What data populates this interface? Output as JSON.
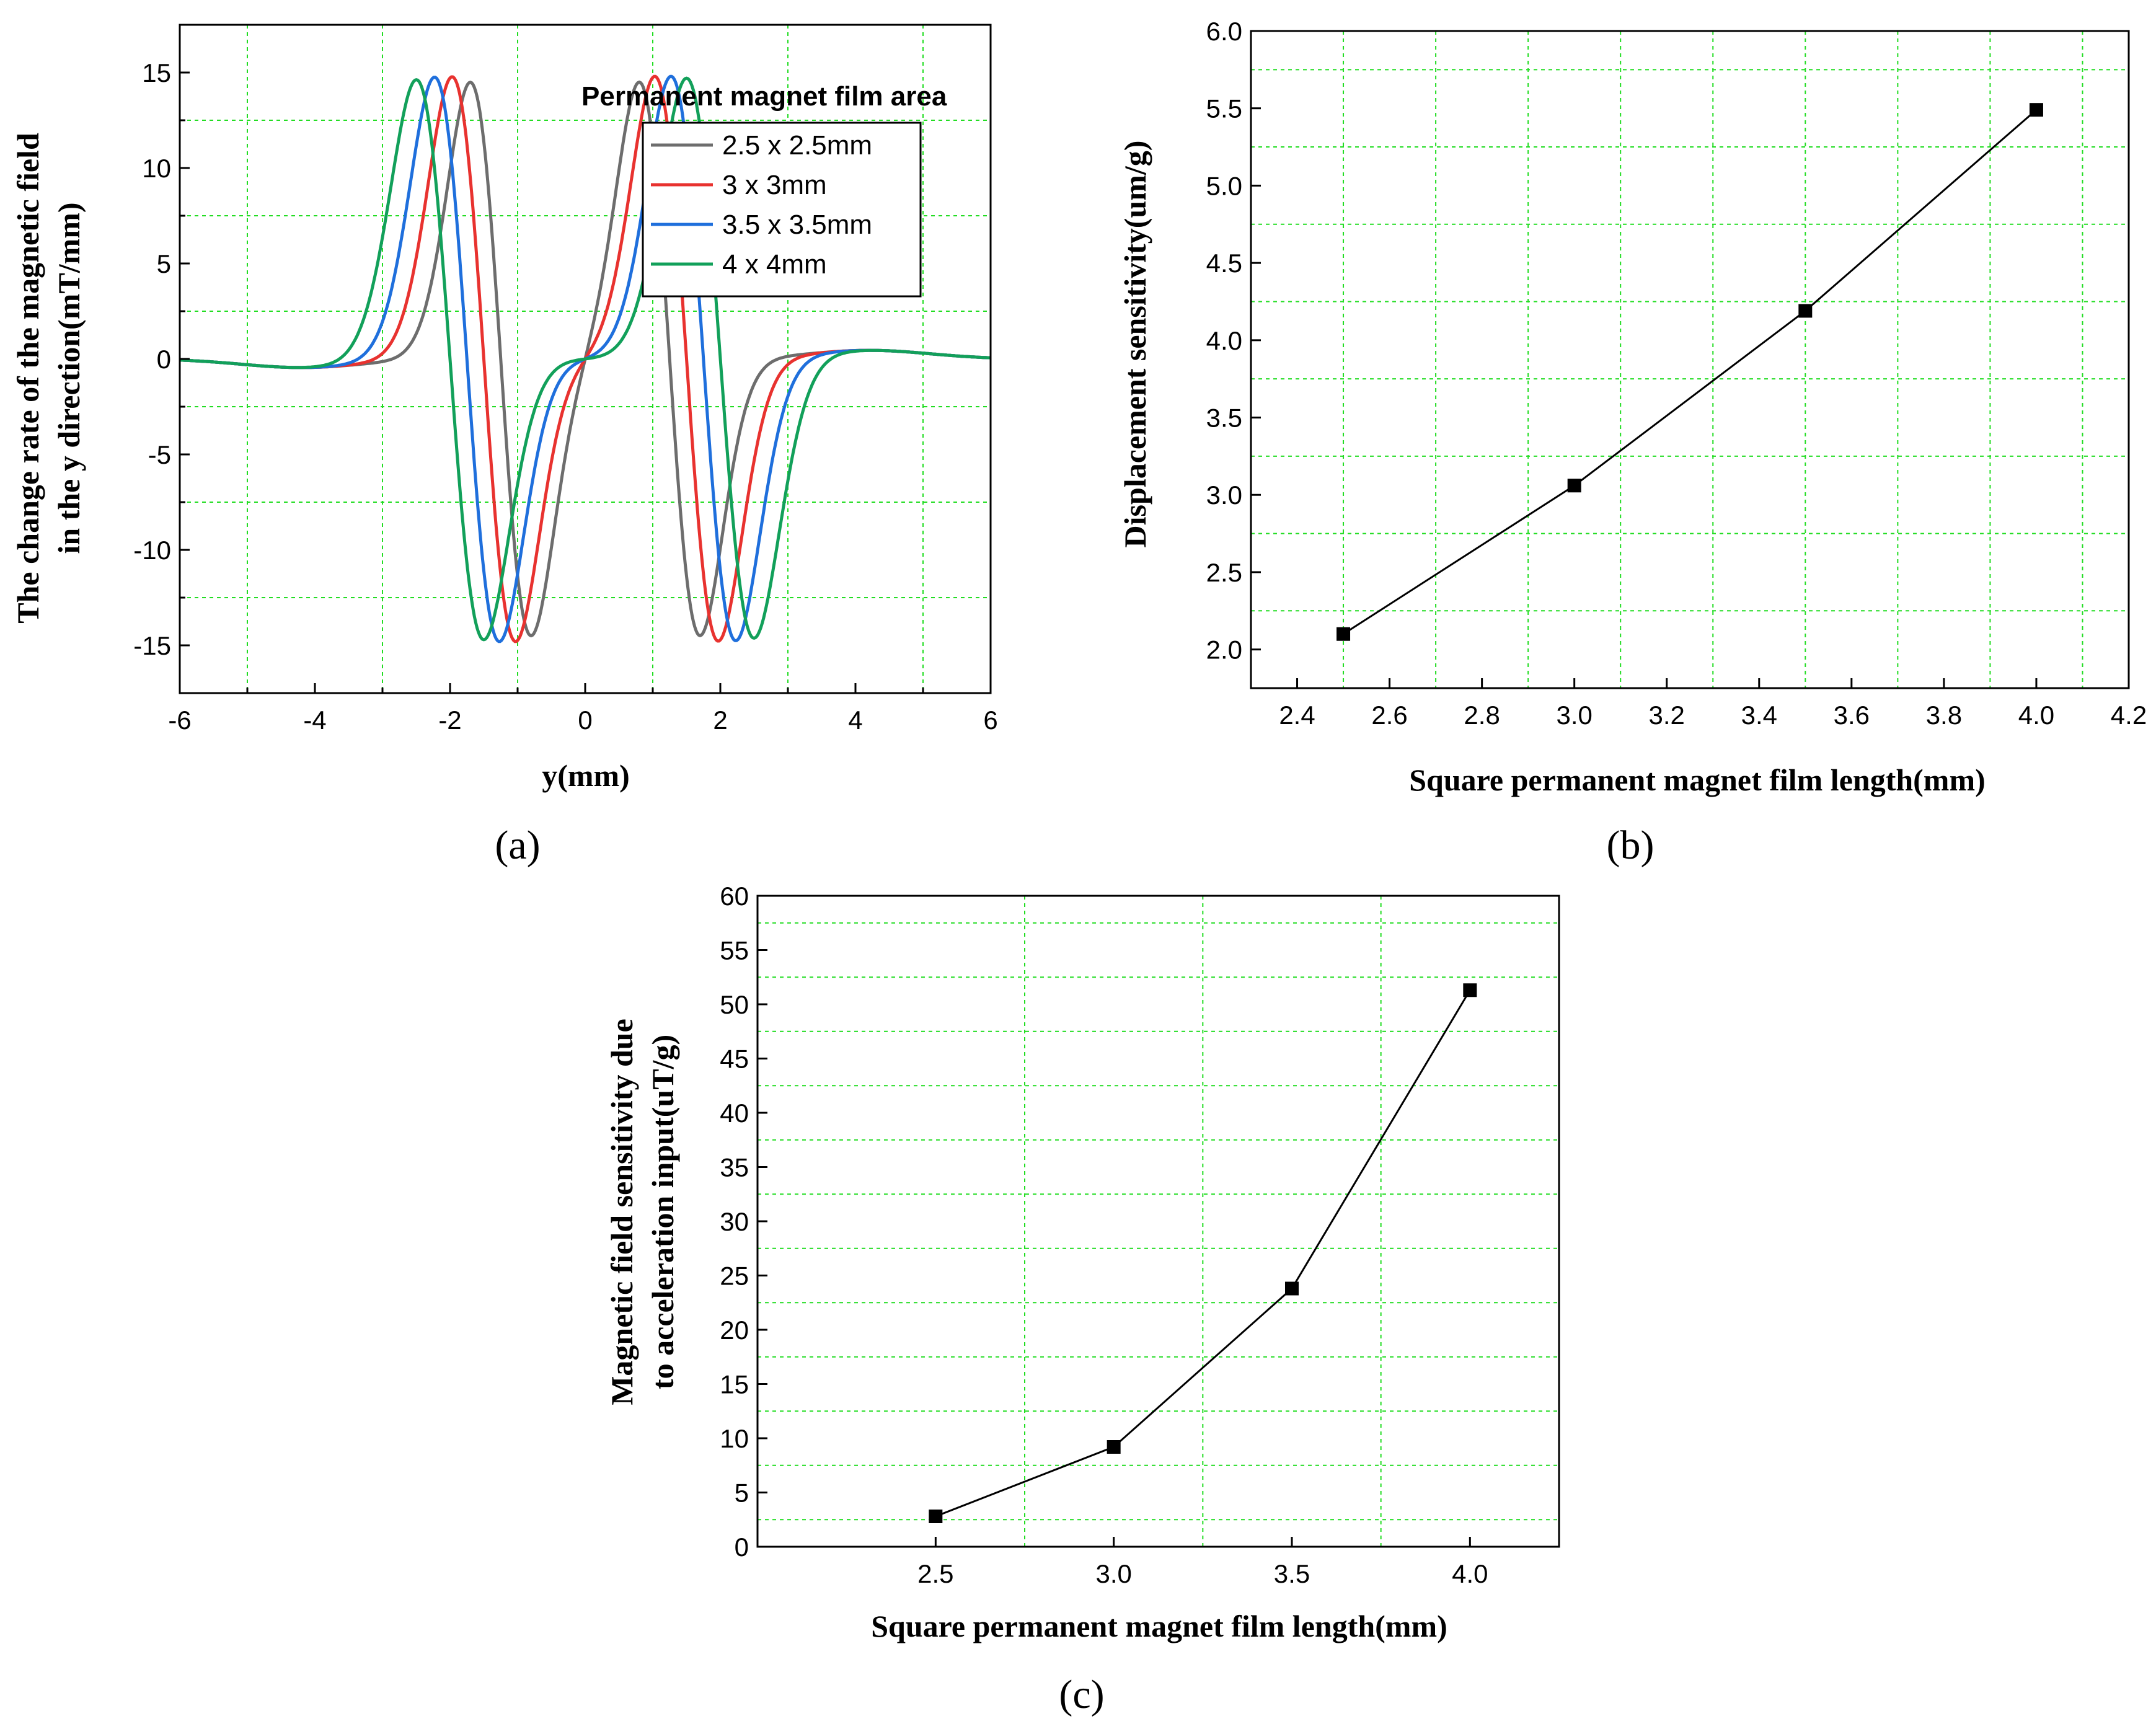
{
  "chart_data": [
    {
      "id": "a",
      "type": "line",
      "panel_label": "(a)",
      "title": "",
      "xlabel": "y(mm)",
      "ylabel_lines": [
        "The change rate of the magnetic field",
        "in the y direction(mT/mm)"
      ],
      "xlim": [
        -6,
        6
      ],
      "ylim": [
        -17.5,
        17.5
      ],
      "xticks": [
        -6,
        -4,
        -2,
        0,
        2,
        4,
        6
      ],
      "xtick_labels": [
        "-6",
        "-4",
        "-2",
        "0",
        "2",
        "4",
        "6"
      ],
      "yticks": [
        -15,
        -10,
        -5,
        0,
        5,
        10,
        15
      ],
      "ytick_labels": [
        "-15",
        "-10",
        "-5",
        "0",
        "5",
        "10",
        "15"
      ],
      "grid": true,
      "legend_title": "Permanent magnet film area",
      "legend_position": "top-right",
      "series": [
        {
          "name": "2.5 x 2.5mm",
          "color": "#6d6d6d",
          "peak_x": -1.25,
          "peak_y": 14.5,
          "width": 0.45,
          "tail": -0.5
        },
        {
          "name": "3 x 3mm",
          "color": "#e8322f",
          "peak_x": -1.5,
          "peak_y": 14.8,
          "width": 0.47,
          "tail": -0.5
        },
        {
          "name": "3.5 x 3.5mm",
          "color": "#1f6fdc",
          "peak_x": -1.75,
          "peak_y": 14.8,
          "width": 0.48,
          "tail": -0.5
        },
        {
          "name": "4 x 4mm",
          "color": "#12a05a",
          "peak_x": -2.0,
          "peak_y": 14.7,
          "width": 0.5,
          "tail": -0.5
        }
      ]
    },
    {
      "id": "b",
      "type": "line",
      "panel_label": "(b)",
      "title": "",
      "xlabel": "Square permanent magnet film length(mm)",
      "ylabel": "Displacement sensitivity(um/g)",
      "xlim": [
        2.3,
        4.2
      ],
      "ylim": [
        1.75,
        6.0
      ],
      "xticks": [
        2.4,
        2.6,
        2.8,
        3.0,
        3.2,
        3.4,
        3.6,
        3.8,
        4.0,
        4.2
      ],
      "xtick_labels": [
        "2.4",
        "2.6",
        "2.8",
        "3.0",
        "3.2",
        "3.4",
        "3.6",
        "3.8",
        "4.0",
        "4.2"
      ],
      "yticks": [
        2.0,
        2.5,
        3.0,
        3.5,
        4.0,
        4.5,
        5.0,
        5.5,
        6.0
      ],
      "ytick_labels": [
        "2.0",
        "2.5",
        "3.0",
        "3.5",
        "4.0",
        "4.5",
        "5.0",
        "5.5",
        "6.0"
      ],
      "grid": true,
      "x": [
        2.5,
        3.0,
        3.5,
        4.0
      ],
      "y": [
        2.1,
        3.06,
        4.19,
        5.49
      ]
    },
    {
      "id": "c",
      "type": "line",
      "panel_label": "(c)",
      "title": "",
      "xlabel": "Square permanent magnet film length(mm)",
      "ylabel_lines": [
        "Magnetic field sensitivity due",
        "to acceleration input(uT/g)"
      ],
      "xlim": [
        2.0,
        4.25
      ],
      "ylim": [
        0,
        60
      ],
      "xticks": [
        2.5,
        3.0,
        3.5,
        4.0
      ],
      "xtick_labels": [
        "2.5",
        "3.0",
        "3.5",
        "4.0"
      ],
      "yticks": [
        0,
        5,
        10,
        15,
        20,
        25,
        30,
        35,
        40,
        45,
        50,
        55,
        60
      ],
      "ytick_labels": [
        "0",
        "5",
        "10",
        "15",
        "20",
        "25",
        "30",
        "35",
        "40",
        "45",
        "50",
        "55",
        "60"
      ],
      "grid": true,
      "x": [
        2.5,
        3.0,
        3.5,
        4.0
      ],
      "y": [
        2.8,
        9.2,
        23.8,
        51.3
      ]
    }
  ]
}
